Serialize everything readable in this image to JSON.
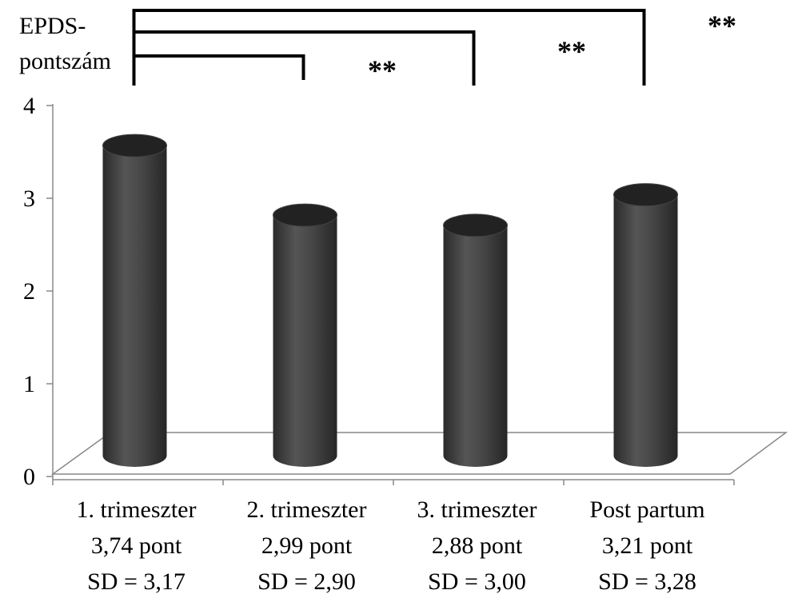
{
  "chart_data": {
    "type": "bar",
    "style": "3d-cylinder",
    "ylabel": [
      "EPDS-",
      "pontszám"
    ],
    "ylim": [
      0,
      4
    ],
    "yticks": [
      0,
      1,
      2,
      3,
      4
    ],
    "categories": [
      "1. trimeszter",
      "2. trimeszter",
      "3. trimeszter",
      "Post partum"
    ],
    "values": [
      3.74,
      2.99,
      2.88,
      3.21
    ],
    "category_labels": [
      [
        "1. trimeszter",
        "3,74 pont",
        "SD = 3,17"
      ],
      [
        "2. trimeszter",
        "2,99 pont",
        "SD = 2,90"
      ],
      [
        "3. trimeszter",
        "2,88 pont",
        "SD = 3,00"
      ],
      [
        "Post partum",
        "3,21 pont",
        "SD = 3,28"
      ]
    ],
    "significance": [
      {
        "from": 0,
        "to": 1,
        "label": "**"
      },
      {
        "from": 0,
        "to": 2,
        "label": "**"
      },
      {
        "from": 0,
        "to": 3,
        "label": "**"
      }
    ],
    "bar_color": "#3a3a3a",
    "grid": false,
    "legend": "none"
  }
}
